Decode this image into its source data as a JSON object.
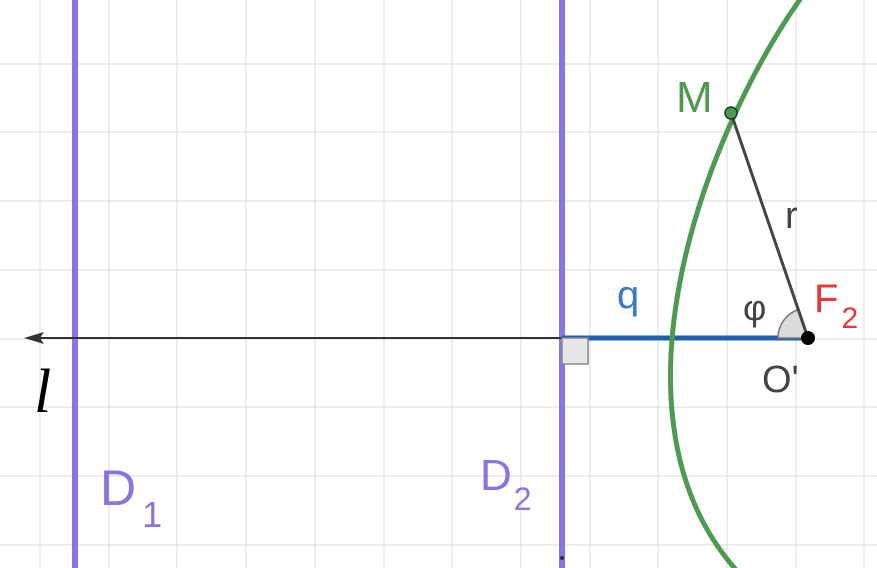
{
  "diagram": {
    "labels": {
      "line_name": "l",
      "directrix_1": {
        "main": "D",
        "sub": "1"
      },
      "directrix_2": {
        "main": "D",
        "sub": "2"
      },
      "point_m": "M",
      "radius": "r",
      "distance": "q",
      "angle": "φ",
      "focus": {
        "main": "F",
        "sub": "2"
      },
      "origin": "O'"
    },
    "colors": {
      "background": "#ffffff",
      "grid": "#d9d9d9",
      "directrix": "#8478e0",
      "curve": "#4f9a52",
      "axis": "#333333",
      "segment_q": "#1f5fb0",
      "focus_label": "#e53935",
      "q_label": "#3b78c9",
      "point_fill": "#4f9a52",
      "focus_point": "#000000",
      "angle_fill": "#dcdcdc"
    }
  }
}
